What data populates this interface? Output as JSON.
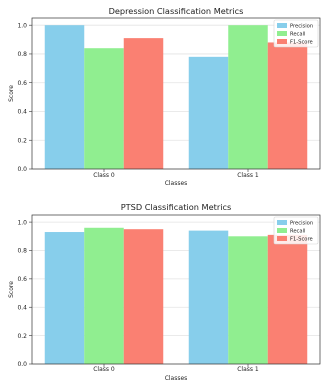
{
  "chart_data": [
    {
      "type": "bar",
      "title": "Depression Classification Metrics",
      "xlabel": "Classes",
      "ylabel": "Score",
      "categories": [
        "Class 0",
        "Class 1"
      ],
      "series": [
        {
          "name": "Precision",
          "values": [
            1.0,
            0.78
          ],
          "color": "#87ceeb"
        },
        {
          "name": "Recall",
          "values": [
            0.84,
            1.0
          ],
          "color": "#90ee90"
        },
        {
          "name": "F1-Score",
          "values": [
            0.91,
            0.88
          ],
          "color": "#fa8072"
        }
      ],
      "ylim": [
        0,
        1.05
      ],
      "yticks": [
        "0.0",
        "0.2",
        "0.4",
        "0.6",
        "0.8",
        "1.0"
      ],
      "grid": true,
      "legend_position": "top-right"
    },
    {
      "type": "bar",
      "title": "PTSD Classification Metrics",
      "xlabel": "Classes",
      "ylabel": "Score",
      "categories": [
        "Class 0",
        "Class 1"
      ],
      "series": [
        {
          "name": "Precision",
          "values": [
            0.93,
            0.94
          ],
          "color": "#87ceeb"
        },
        {
          "name": "Recall",
          "values": [
            0.96,
            0.9
          ],
          "color": "#90ee90"
        },
        {
          "name": "F1-Score",
          "values": [
            0.95,
            0.91
          ],
          "color": "#fa8072"
        }
      ],
      "ylim": [
        0,
        1.05
      ],
      "yticks": [
        "0.0",
        "0.2",
        "0.4",
        "0.6",
        "0.8",
        "1.0"
      ],
      "grid": true,
      "legend_position": "top-right"
    }
  ]
}
